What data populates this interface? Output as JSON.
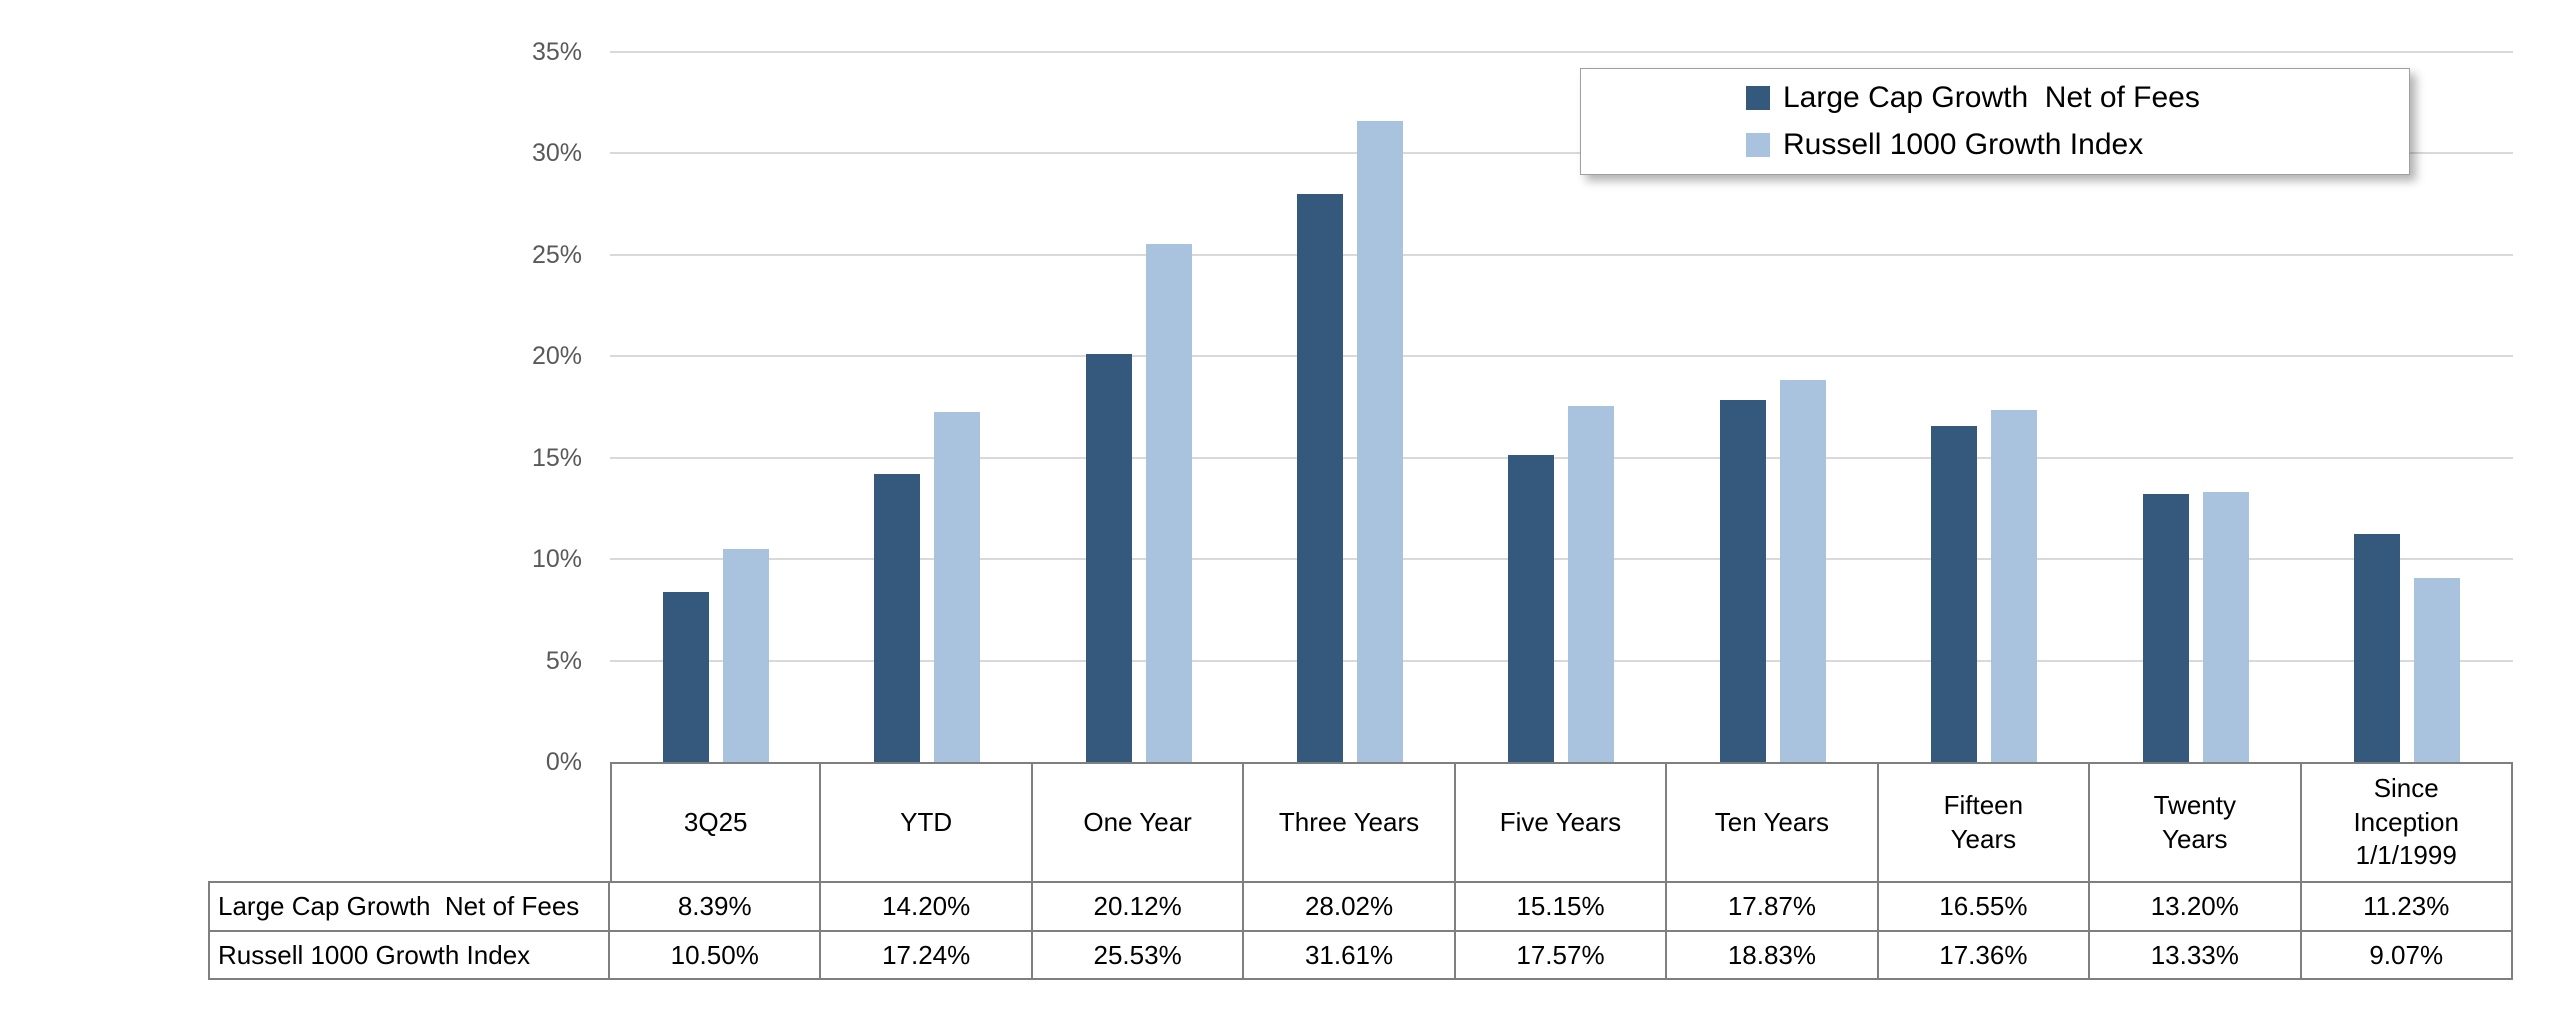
{
  "chart_data": {
    "type": "bar",
    "title": "",
    "xlabel": "",
    "ylabel": "",
    "categories": [
      "3Q25",
      "YTD",
      "One Year",
      "Three Years",
      "Five Years",
      "Ten Years",
      "Fifteen Years",
      "Twenty Years",
      "Since Inception 1/1/1999"
    ],
    "series": [
      {
        "name": "Large Cap Growth  Net of Fees",
        "color": "#35587D",
        "values": [
          8.39,
          14.2,
          20.12,
          28.02,
          15.15,
          17.87,
          16.55,
          13.2,
          11.23
        ]
      },
      {
        "name": "Russell 1000 Growth Index",
        "color": "#A9C2DE",
        "values": [
          10.5,
          17.24,
          25.53,
          31.61,
          17.57,
          18.83,
          17.36,
          13.33,
          9.07
        ]
      }
    ],
    "ylim": [
      0,
      35
    ],
    "yticks": [
      {
        "label": "0%",
        "value": 0
      },
      {
        "label": "5%",
        "value": 5
      },
      {
        "label": "10%",
        "value": 10
      },
      {
        "label": "15%",
        "value": 15
      },
      {
        "label": "20%",
        "value": 20
      },
      {
        "label": "25%",
        "value": 25
      },
      {
        "label": "30%",
        "value": 30
      },
      {
        "label": "35%",
        "value": 35
      }
    ],
    "grid": true,
    "legend_position": "top-right"
  },
  "legend": {
    "items": [
      {
        "label": "Large Cap Growth  Net of Fees",
        "color": "#35587D"
      },
      {
        "label": "Russell 1000 Growth Index",
        "color": "#A9C2DE"
      }
    ]
  },
  "table": {
    "column_headers": [
      "3Q25",
      "YTD",
      "One Year",
      "Three Years",
      "Five Years",
      "Ten Years",
      "Fifteen\nYears",
      "Twenty\nYears",
      "Since\nInception\n1/1/1999"
    ],
    "rows": [
      {
        "label": "Large Cap Growth  Net of Fees",
        "values": [
          "8.39%",
          "14.20%",
          "20.12%",
          "28.02%",
          "15.15%",
          "17.87%",
          "16.55%",
          "13.20%",
          "11.23%"
        ]
      },
      {
        "label": "Russell 1000 Growth Index",
        "values": [
          "10.50%",
          "17.24%",
          "25.53%",
          "31.61%",
          "17.57%",
          "18.83%",
          "17.36%",
          "13.33%",
          "9.07%"
        ]
      }
    ]
  },
  "colors": {
    "series1": "#35587D",
    "series2": "#A9C2DE",
    "gridline": "#D9D9D9",
    "table_border": "#7F7F7F",
    "axis_label": "#595959"
  }
}
